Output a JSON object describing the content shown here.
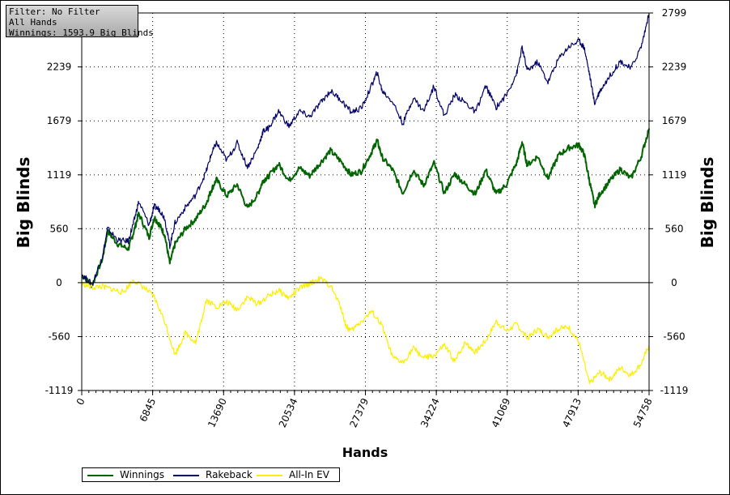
{
  "info": {
    "filter": "Filter: No Filter",
    "hands": "All Hands",
    "winnings": "Winnings: 1593.9 Big Blinds"
  },
  "colors": {
    "winnings": "#006400",
    "rakeback": "#000066",
    "allin": "#ffee00",
    "grid": "#000000"
  },
  "chart_data": {
    "type": "line",
    "xlabel": "Hands",
    "ylabel": "Big Blinds",
    "xlim": [
      0,
      54758
    ],
    "ylim": [
      -1119,
      2799
    ],
    "x_ticks": [
      "0",
      "6845",
      "13690",
      "20534",
      "27379",
      "34224",
      "41069",
      "47913",
      "54758"
    ],
    "y_ticks": [
      "2799",
      "2239",
      "1679",
      "1119",
      "560",
      "0",
      "-560",
      "-1119"
    ],
    "y_tick_values": [
      2799,
      2239,
      1679,
      1119,
      560,
      0,
      -560,
      -1119
    ],
    "grid": true,
    "legend_position": "bottom-left",
    "series": [
      {
        "name": "Winnings",
        "x": [
          0,
          1000,
          2000,
          2500,
          3500,
          4500,
          5000,
          5500,
          6500,
          7000,
          7500,
          8000,
          8500,
          9000,
          10000,
          11000,
          12000,
          12500,
          13000,
          14000,
          15000,
          16000,
          17000,
          17500,
          18000,
          19000,
          20000,
          21000,
          22000,
          23000,
          24000,
          25000,
          26000,
          27000,
          28000,
          28500,
          29000,
          30000,
          31000,
          32000,
          33000,
          34000,
          35000,
          36000,
          37000,
          38000,
          39000,
          40000,
          41000,
          42000,
          42500,
          43000,
          44000,
          45000,
          46000,
          47000,
          48000,
          48500,
          49000,
          49500,
          50000,
          51000,
          52000,
          53000,
          54000,
          54758
        ],
        "y": [
          80,
          -30,
          250,
          530,
          400,
          350,
          520,
          720,
          470,
          680,
          600,
          500,
          200,
          400,
          560,
          660,
          820,
          960,
          1070,
          900,
          1020,
          770,
          920,
          1060,
          1100,
          1230,
          1060,
          1190,
          1110,
          1240,
          1370,
          1260,
          1120,
          1160,
          1360,
          1480,
          1300,
          1170,
          930,
          1170,
          1010,
          1240,
          930,
          1130,
          1020,
          920,
          1170,
          920,
          1020,
          1250,
          1460,
          1220,
          1310,
          1080,
          1320,
          1400,
          1430,
          1330,
          1060,
          800,
          920,
          1060,
          1180,
          1080,
          1310,
          1600
        ]
      },
      {
        "name": "Rakeback",
        "x": [
          0,
          1000,
          2000,
          2500,
          3500,
          4500,
          5000,
          5500,
          6500,
          7000,
          7500,
          8000,
          8500,
          9000,
          10000,
          11000,
          12000,
          12500,
          13000,
          14000,
          15000,
          16000,
          17000,
          17500,
          18000,
          19000,
          20000,
          21000,
          22000,
          23000,
          24000,
          25000,
          26000,
          27000,
          28000,
          28500,
          29000,
          30000,
          31000,
          32000,
          33000,
          34000,
          35000,
          36000,
          37000,
          38000,
          39000,
          40000,
          41000,
          42000,
          42500,
          43000,
          44000,
          45000,
          46000,
          47000,
          48000,
          48500,
          49000,
          49500,
          50000,
          51000,
          52000,
          53000,
          54000,
          54758
        ],
        "y": [
          90,
          -20,
          270,
          560,
          440,
          430,
          620,
          840,
          600,
          790,
          760,
          670,
          380,
          620,
          780,
          910,
          1150,
          1330,
          1450,
          1270,
          1450,
          1200,
          1400,
          1570,
          1600,
          1780,
          1620,
          1780,
          1720,
          1860,
          1990,
          1900,
          1770,
          1810,
          2050,
          2180,
          1990,
          1880,
          1650,
          1920,
          1780,
          2040,
          1730,
          1950,
          1870,
          1770,
          2040,
          1820,
          1950,
          2180,
          2440,
          2200,
          2290,
          2080,
          2320,
          2450,
          2510,
          2440,
          2170,
          1860,
          1990,
          2150,
          2300,
          2220,
          2450,
          2790
        ]
      },
      {
        "name": "All-In EV",
        "x": [
          0,
          1000,
          2000,
          3000,
          4000,
          5000,
          6000,
          7000,
          8000,
          9000,
          10000,
          11000,
          11500,
          12000,
          13000,
          14000,
          15000,
          16000,
          17000,
          18000,
          19000,
          20000,
          21000,
          22000,
          23000,
          24000,
          25000,
          25500,
          26000,
          27000,
          28000,
          29000,
          30000,
          31000,
          32000,
          33000,
          34000,
          35000,
          36000,
          37000,
          38000,
          39000,
          40000,
          41000,
          42000,
          43000,
          44000,
          45000,
          46000,
          47000,
          48000,
          49000,
          50000,
          51000,
          52000,
          53000,
          54000,
          54758
        ],
        "y": [
          -10,
          -50,
          -40,
          -70,
          -100,
          30,
          -50,
          -150,
          -400,
          -750,
          -520,
          -620,
          -420,
          -180,
          -250,
          -200,
          -280,
          -150,
          -220,
          -140,
          -80,
          -160,
          -60,
          -10,
          40,
          -30,
          -250,
          -450,
          -500,
          -400,
          -300,
          -450,
          -780,
          -830,
          -680,
          -780,
          -760,
          -650,
          -820,
          -620,
          -720,
          -600,
          -400,
          -500,
          -430,
          -580,
          -480,
          -560,
          -480,
          -460,
          -620,
          -1050,
          -930,
          -1000,
          -880,
          -960,
          -840,
          -650
        ]
      }
    ]
  }
}
